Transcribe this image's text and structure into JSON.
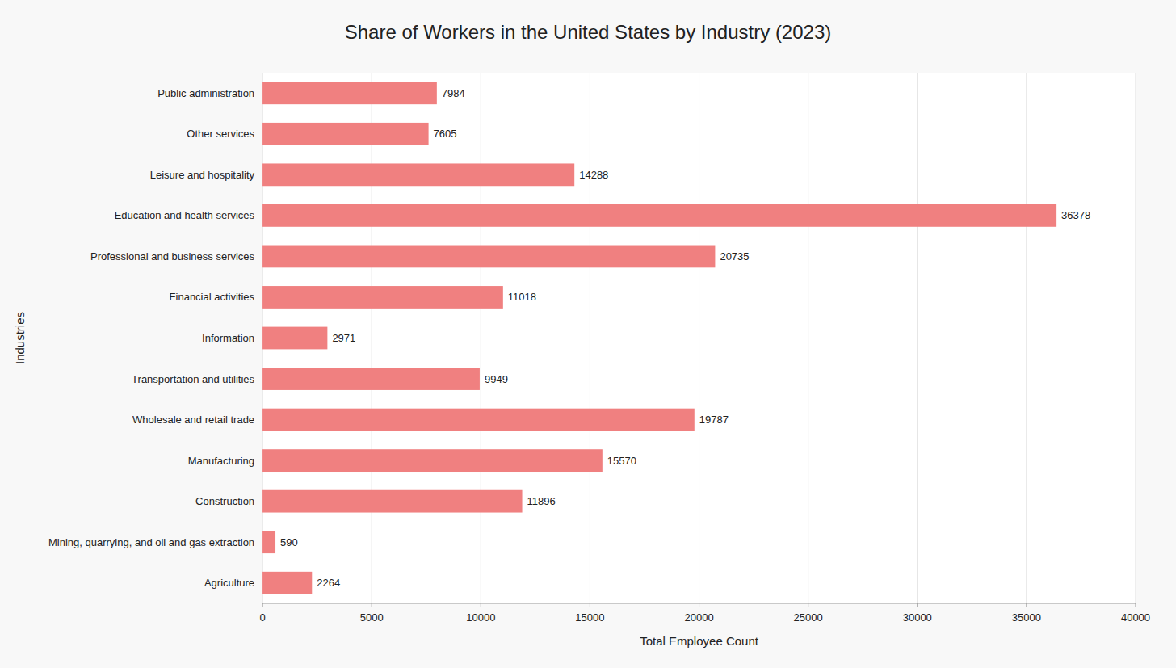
{
  "chart_data": {
    "type": "bar",
    "orientation": "horizontal",
    "title": "Share of Workers in the United States by Industry (2023)",
    "xlabel": "Total Employee Count",
    "ylabel": "Industries",
    "categories": [
      "Agriculture",
      "Mining, quarrying, and oil and gas extraction",
      "Construction",
      "Manufacturing",
      "Wholesale and retail trade",
      "Transportation and utilities",
      "Information",
      "Financial activities",
      "Professional and business services",
      "Education and health services",
      "Leisure and hospitality",
      "Other services",
      "Public administration"
    ],
    "values": [
      2264,
      590,
      11896,
      15570,
      19787,
      9949,
      2971,
      11018,
      20735,
      36378,
      14288,
      7605,
      7984
    ],
    "color": "#F08080",
    "xlim": [
      0,
      40000
    ],
    "xticks": [
      0,
      5000,
      10000,
      15000,
      20000,
      25000,
      30000,
      35000,
      40000
    ],
    "grid": true,
    "data_labels": true
  }
}
